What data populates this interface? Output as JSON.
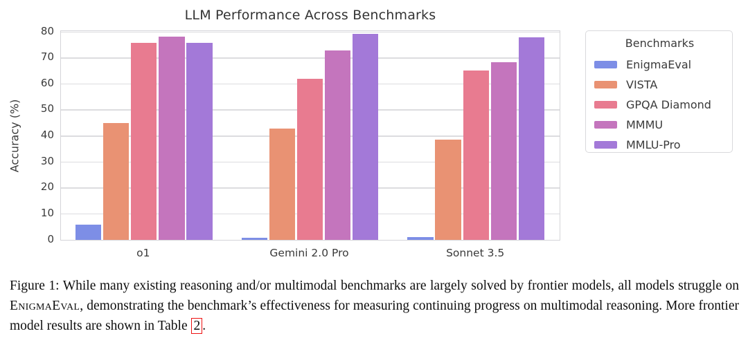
{
  "chart_data": {
    "type": "bar",
    "title": "LLM Performance Across Benchmarks",
    "xlabel": "",
    "ylabel": "Accuracy (%)",
    "ylim": [
      0,
      80
    ],
    "yticks": [
      0,
      10,
      20,
      30,
      40,
      50,
      60,
      70,
      80
    ],
    "grid": true,
    "legend_title": "Benchmarks",
    "legend_position": "right",
    "categories": [
      "o1",
      "Gemini 2.0 Pro",
      "Sonnet 3.5"
    ],
    "series": [
      {
        "name": "EnigmaEval",
        "color": "#7d8ee6",
        "values": [
          5.8,
          0.8,
          1.0
        ]
      },
      {
        "name": "VISTA",
        "color": "#e99273",
        "values": [
          45.0,
          42.8,
          38.5
        ]
      },
      {
        "name": "GPQA Diamond",
        "color": "#e87b90",
        "values": [
          75.7,
          62.0,
          65.0
        ]
      },
      {
        "name": "MMMU",
        "color": "#c475bd",
        "values": [
          78.2,
          72.7,
          68.3
        ]
      },
      {
        "name": "MMLU-Pro",
        "color": "#a379d8",
        "values": [
          75.8,
          79.1,
          77.9
        ]
      }
    ]
  },
  "caption": {
    "part1": "Figure 1: While many existing reasoning and/or multimodal benchmarks are largely solved by frontier models, all models struggle on ",
    "smallcaps_word": "EnigmaEval",
    "part2": ", demonstrating the benchmark’s effectiveness for measuring continuing progress on multimodal reasoning. More frontier model results are shown in Table ",
    "table_ref": "2",
    "part3": "."
  },
  "colors": {
    "grid": "#dcdcdf",
    "frame": "#d4d4d8",
    "tick_text": "#3a3a3a",
    "title_text": "#333333",
    "ref_box": "#ee1111"
  }
}
